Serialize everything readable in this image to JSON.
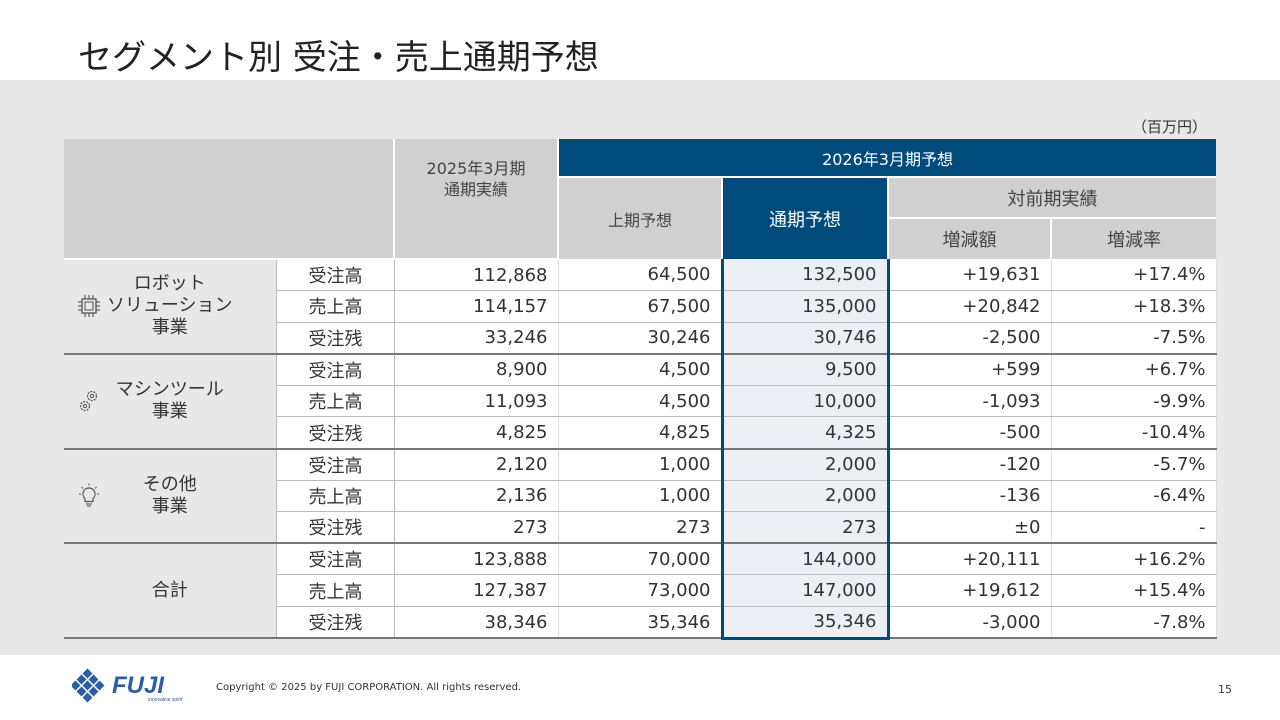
{
  "title": "セグメント別 受注・売上通期予想",
  "unit": "（百万円）",
  "headers": {
    "prev_year": "2025年3月期\n通期実績",
    "forecast_group": "2026年3月期予想",
    "first_half": "上期予想",
    "full_year": "通期予想",
    "vs_prev": "対前期実績",
    "change_amount": "増減額",
    "change_rate": "増減率"
  },
  "segments": [
    {
      "name": "ロボット\nソリューション\n事業",
      "icon": "chip-icon",
      "rows": [
        {
          "label": "受注高",
          "prev": "112,868",
          "h1": "64,500",
          "fy": "132,500",
          "diff": "+19,631",
          "rate": "+17.4%"
        },
        {
          "label": "売上高",
          "prev": "114,157",
          "h1": "67,500",
          "fy": "135,000",
          "diff": "+20,842",
          "rate": "+18.3%"
        },
        {
          "label": "受注残",
          "prev": "33,246",
          "h1": "30,246",
          "fy": "30,746",
          "diff": "-2,500",
          "rate": "-7.5%"
        }
      ]
    },
    {
      "name": "マシンツール\n事業",
      "icon": "gears-icon",
      "rows": [
        {
          "label": "受注高",
          "prev": "8,900",
          "h1": "4,500",
          "fy": "9,500",
          "diff": "+599",
          "rate": "+6.7%"
        },
        {
          "label": "売上高",
          "prev": "11,093",
          "h1": "4,500",
          "fy": "10,000",
          "diff": "-1,093",
          "rate": "-9.9%"
        },
        {
          "label": "受注残",
          "prev": "4,825",
          "h1": "4,825",
          "fy": "4,325",
          "diff": "-500",
          "rate": "-10.4%"
        }
      ]
    },
    {
      "name": "その他\n事業",
      "icon": "lightbulb-icon",
      "rows": [
        {
          "label": "受注高",
          "prev": "2,120",
          "h1": "1,000",
          "fy": "2,000",
          "diff": "-120",
          "rate": "-5.7%"
        },
        {
          "label": "売上高",
          "prev": "2,136",
          "h1": "1,000",
          "fy": "2,000",
          "diff": "-136",
          "rate": "-6.4%"
        },
        {
          "label": "受注残",
          "prev": "273",
          "h1": "273",
          "fy": "273",
          "diff": "±0",
          "rate": "-"
        }
      ]
    },
    {
      "name": "合計",
      "icon": "",
      "rows": [
        {
          "label": "受注高",
          "prev": "123,888",
          "h1": "70,000",
          "fy": "144,000",
          "diff": "+20,111",
          "rate": "+16.2%"
        },
        {
          "label": "売上高",
          "prev": "127,387",
          "h1": "73,000",
          "fy": "147,000",
          "diff": "+19,612",
          "rate": "+15.4%"
        },
        {
          "label": "受注残",
          "prev": "38,346",
          "h1": "35,346",
          "fy": "35,346",
          "diff": "-3,000",
          "rate": "-7.8%"
        }
      ]
    }
  ],
  "footer": {
    "copyright": "Copyright © 2025 by FUJI CORPORATION. All rights reserved.",
    "page": "15",
    "logo_text": "FUJI",
    "logo_tagline": "innovative spirit"
  },
  "colors": {
    "accent": "#004b7c",
    "band": "#e8e8e8",
    "header_gray": "#d0d0d0",
    "highlight": "#ecf0f5"
  }
}
